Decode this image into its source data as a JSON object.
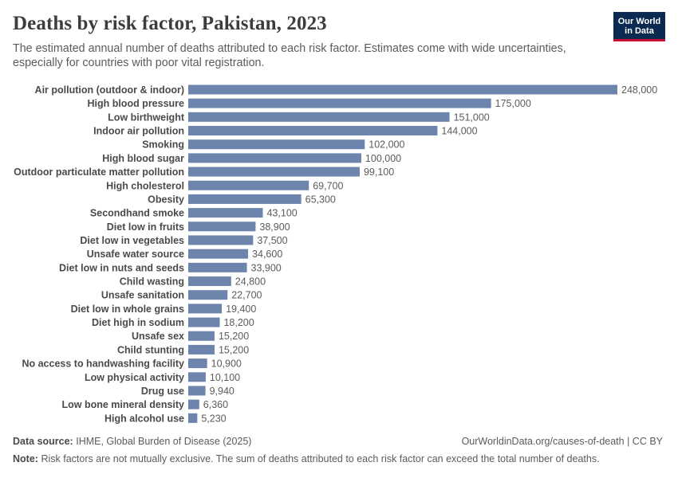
{
  "header": {
    "title": "Deaths by risk factor, Pakistan, 2023",
    "subtitle": "The estimated annual number of deaths attributed to each risk factor. Estimates come with wide uncertainties, especially for countries with poor vital registration."
  },
  "logo": {
    "line1": "Our World",
    "line2": "in Data",
    "bg_color": "#0b2a52",
    "accent_color": "#c8102e"
  },
  "footer": {
    "source_label": "Data source:",
    "source_text": "IHME, Global Burden of Disease (2025)",
    "url": "OurWorldinData.org/causes-of-death | CC BY",
    "note_label": "Note:",
    "note_text": "Risk factors are not mutually exclusive. The sum of deaths attributed to each risk factor can exceed the total number of deaths."
  },
  "chart_data": {
    "type": "bar",
    "orientation": "horizontal",
    "bar_color": "#6d84ad",
    "categories": [
      "Air pollution (outdoor & indoor)",
      "High blood pressure",
      "Low birthweight",
      "Indoor air pollution",
      "Smoking",
      "High blood sugar",
      "Outdoor particulate matter pollution",
      "High cholesterol",
      "Obesity",
      "Secondhand smoke",
      "Diet low in fruits",
      "Diet low in vegetables",
      "Unsafe water source",
      "Diet low in nuts and seeds",
      "Child wasting",
      "Unsafe sanitation",
      "Diet low in whole grains",
      "Diet high in sodium",
      "Unsafe sex",
      "Child stunting",
      "No access to handwashing facility",
      "Low physical activity",
      "Drug use",
      "Low bone mineral density",
      "High alcohol use"
    ],
    "values": [
      248000,
      175000,
      151000,
      144000,
      102000,
      100000,
      99100,
      69700,
      65300,
      43100,
      38900,
      37500,
      34600,
      33900,
      24800,
      22700,
      19400,
      18200,
      15200,
      15200,
      10900,
      10100,
      9940,
      6360,
      5230
    ],
    "value_labels": [
      "248,000",
      "175,000",
      "151,000",
      "144,000",
      "102,000",
      "100,000",
      "99,100",
      "69,700",
      "65,300",
      "43,100",
      "38,900",
      "37,500",
      "34,600",
      "33,900",
      "24,800",
      "22,700",
      "19,400",
      "18,200",
      "15,200",
      "15,200",
      "10,900",
      "10,100",
      "9,940",
      "6,360",
      "5,230"
    ],
    "xlim": [
      0,
      248000
    ]
  }
}
